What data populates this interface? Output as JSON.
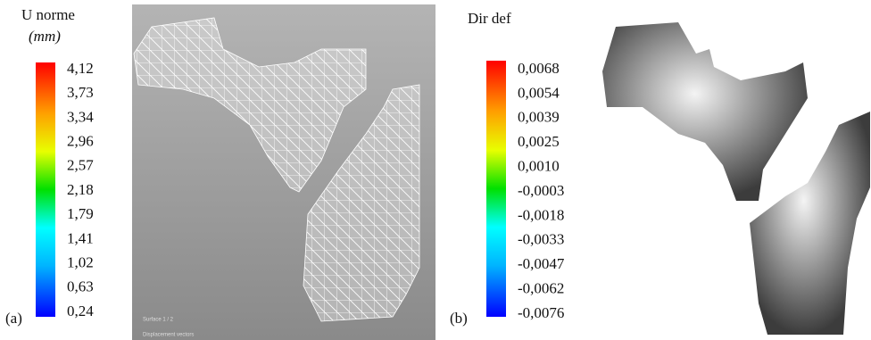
{
  "panels": [
    {
      "label": "(a)",
      "colorbar": {
        "title": "U norme",
        "unit": "(mm)",
        "ticks": [
          "4,12",
          "3,73",
          "3,34",
          "2,96",
          "2,57",
          "2,18",
          "1,79",
          "1,41",
          "1,02",
          "0,63",
          "0,24"
        ]
      },
      "image": {
        "caption_1": "Surface 1 / 2",
        "caption_2": "Displacement vectors"
      }
    },
    {
      "label": "(b)",
      "colorbar": {
        "title": "Dir def",
        "ticks": [
          "0,0068",
          "0,0054",
          "0,0039",
          "0,0025",
          "0,0010",
          "-0,0003",
          "-0,0018",
          "-0,0033",
          "-0,0047",
          "-0,0062",
          "-0,0076"
        ]
      }
    }
  ]
}
